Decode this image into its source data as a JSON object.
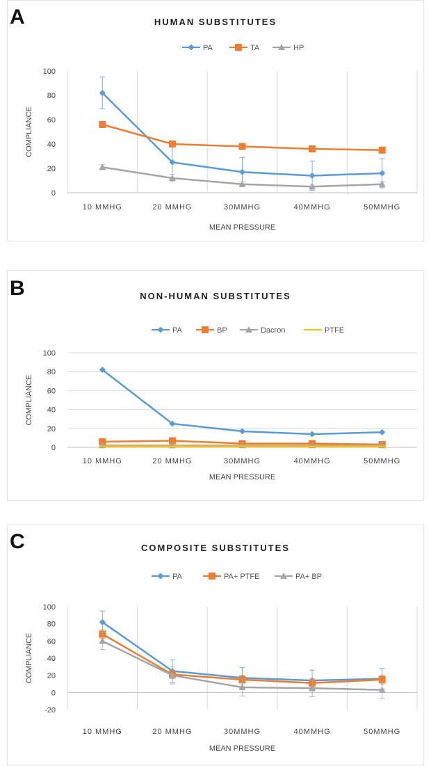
{
  "panels": {
    "a": {
      "letter": "A"
    },
    "b": {
      "letter": "B"
    },
    "c": {
      "letter": "C"
    }
  },
  "chart_data": [
    {
      "id": "a",
      "type": "line",
      "title": "HUMAN SUBSTITUTES",
      "xlabel": "MEAN PRESSURE",
      "ylabel": "COMPLIANCE",
      "categories": [
        "10 MMHG",
        "20 MMHG",
        "30MMHG",
        "40MMHG",
        "50MMHG"
      ],
      "ylim": [
        0,
        100
      ],
      "yticks": [
        0,
        20,
        40,
        60,
        80,
        100
      ],
      "grid": "vertical",
      "legend": "top",
      "series": [
        {
          "name": "PA",
          "color": "#5b9bd5",
          "marker": "diamond",
          "values": [
            82,
            25,
            17,
            14,
            16
          ],
          "errors": [
            13,
            13,
            12,
            12,
            12
          ]
        },
        {
          "name": "TA",
          "color": "#ed7d31",
          "marker": "square",
          "values": [
            56,
            40,
            38,
            36,
            35
          ],
          "errors": [
            2,
            2,
            2,
            2,
            1
          ]
        },
        {
          "name": "HP",
          "color": "#a5a5a5",
          "marker": "triangle",
          "values": [
            21,
            12,
            7,
            5,
            7
          ],
          "errors": [
            2,
            3,
            2,
            2,
            2
          ]
        }
      ]
    },
    {
      "id": "b",
      "type": "line",
      "title": "NON-HUMAN SUBSTITUTES",
      "xlabel": "MEAN PRESSURE",
      "ylabel": "COMPLIANCE",
      "categories": [
        "10 MMHG",
        "20 MMHG",
        "30MMHG",
        "40MMHG",
        "50MMHG"
      ],
      "ylim": [
        0,
        100
      ],
      "yticks": [
        0,
        20,
        40,
        60,
        80,
        100
      ],
      "grid": "horizontal",
      "legend": "top",
      "series": [
        {
          "name": "PA",
          "color": "#5b9bd5",
          "marker": "diamond",
          "values": [
            82,
            25,
            17,
            14,
            16
          ]
        },
        {
          "name": "BP",
          "color": "#ed7d31",
          "marker": "square",
          "values": [
            6,
            7,
            4,
            4,
            3
          ]
        },
        {
          "name": "Dacron",
          "color": "#a5a5a5",
          "marker": "triangle",
          "values": [
            2,
            2,
            2,
            2,
            2
          ]
        },
        {
          "name": "PTFE",
          "color": "#ffc000",
          "marker": "dash",
          "values": [
            1,
            1,
            1,
            1,
            1
          ]
        }
      ]
    },
    {
      "id": "c",
      "type": "line",
      "title": "COMPOSITE SUBSTITUTES",
      "xlabel": "MEAN PRESSURE",
      "ylabel": "COMPLIANCE",
      "categories": [
        "10 MMHG",
        "20 MMHG",
        "30MMHG",
        "40MMHG",
        "50MMHG"
      ],
      "ylim": [
        -20,
        100
      ],
      "yticks": [
        -20,
        0,
        20,
        40,
        60,
        80,
        100
      ],
      "grid": "vertical",
      "legend": "top",
      "series": [
        {
          "name": "PA",
          "color": "#5b9bd5",
          "marker": "diamond",
          "values": [
            82,
            25,
            17,
            14,
            16
          ],
          "errors": [
            13,
            13,
            12,
            12,
            12
          ]
        },
        {
          "name": "PA+ PTFE",
          "color": "#ed7d31",
          "marker": "square",
          "values": [
            68,
            21,
            15,
            11,
            15
          ],
          "errors": [
            5,
            5,
            5,
            5,
            5
          ]
        },
        {
          "name": "PA+ BP",
          "color": "#a5a5a5",
          "marker": "triangle",
          "values": [
            60,
            20,
            6,
            5,
            3
          ],
          "errors": [
            10,
            10,
            10,
            10,
            10
          ]
        }
      ]
    }
  ]
}
